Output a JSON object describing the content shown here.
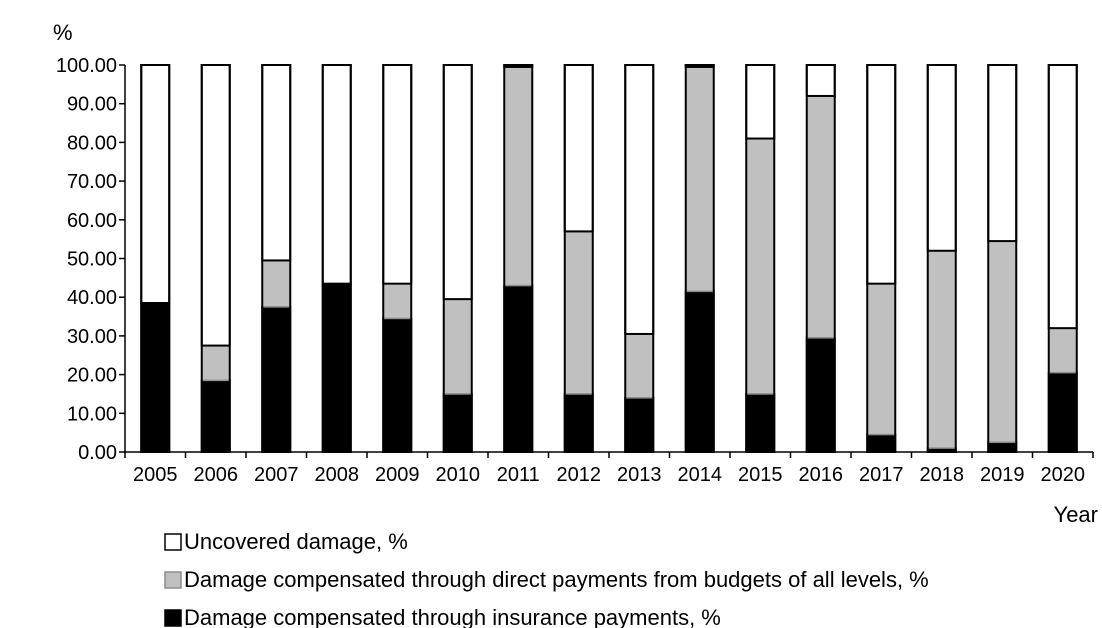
{
  "chart_data": {
    "type": "bar",
    "stacked": true,
    "percent_stacked": true,
    "y_axis_label": "%",
    "x_axis_label": "Year",
    "ylim": [
      0,
      100
    ],
    "y_ticks": [
      "0.00",
      "10.00",
      "20.00",
      "30.00",
      "40.00",
      "50.00",
      "60.00",
      "70.00",
      "80.00",
      "90.00",
      "100.00"
    ],
    "grid": false,
    "legend_position": "bottom",
    "categories": [
      "2005",
      "2006",
      "2007",
      "2008",
      "2009",
      "2010",
      "2011",
      "2012",
      "2013",
      "2014",
      "2015",
      "2016",
      "2017",
      "2018",
      "2019",
      "2020"
    ],
    "series": [
      {
        "name": "Damage compensated through insurance payments, %",
        "color": "#000000",
        "values": [
          38.5,
          18.5,
          37.5,
          43.5,
          34.5,
          15.0,
          43.0,
          15.0,
          14.0,
          41.5,
          15.0,
          29.5,
          4.5,
          1.0,
          2.5,
          20.5
        ]
      },
      {
        "name": "Damage compensated through direct payments from budgets of all levels, %",
        "color": "#c0c0c0",
        "values": [
          0.0,
          9.0,
          12.0,
          0.0,
          9.0,
          24.5,
          56.5,
          42.0,
          16.5,
          58.0,
          66.0,
          62.5,
          39.0,
          51.0,
          52.0,
          11.5
        ]
      },
      {
        "name": "Uncovered damage, %",
        "color": "#ffffff",
        "values": [
          61.5,
          72.5,
          50.5,
          56.5,
          56.5,
          60.5,
          0.5,
          43.0,
          69.5,
          0.5,
          19.0,
          8.0,
          56.5,
          48.0,
          45.5,
          68.0
        ]
      }
    ],
    "legend_order": [
      2,
      1,
      0
    ]
  }
}
